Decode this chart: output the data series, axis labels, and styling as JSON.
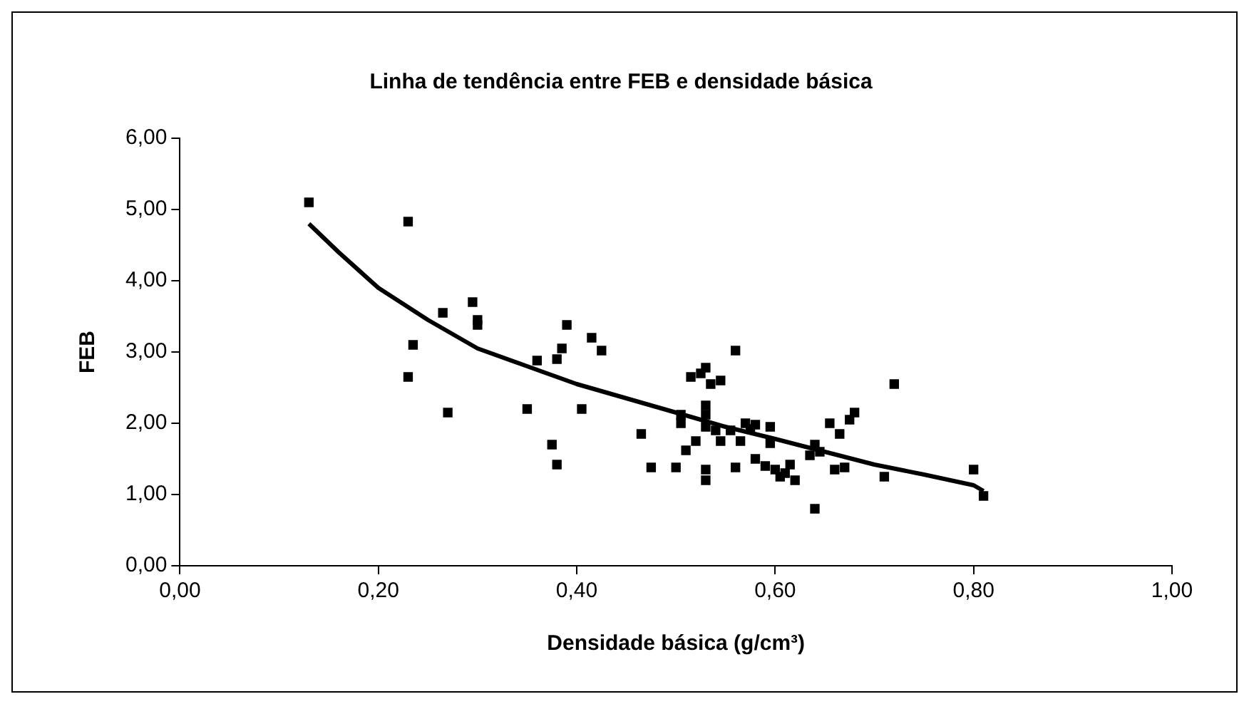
{
  "chart_data": {
    "type": "scatter",
    "title": "Linha de tendência entre FEB e densidade básica",
    "xlabel": "Densidade básica (g/cm³)",
    "ylabel": "FEB",
    "marker": "square",
    "grid": false,
    "legend": false,
    "xlim": [
      0,
      1
    ],
    "xticks": [
      {
        "value": 0,
        "label": "0,00"
      },
      {
        "value": 0.2,
        "label": "0,20"
      },
      {
        "value": 0.4,
        "label": "0,40"
      },
      {
        "value": 0.6,
        "label": "0,60"
      },
      {
        "value": 0.8,
        "label": "0,80"
      },
      {
        "value": 1,
        "label": "1,00"
      }
    ],
    "ylim": [
      0,
      6
    ],
    "yticks": [
      {
        "value": 0,
        "label": "0,00"
      },
      {
        "value": 1,
        "label": "1,00"
      },
      {
        "value": 2,
        "label": "2,00"
      },
      {
        "value": 3,
        "label": "3,00"
      },
      {
        "value": 4,
        "label": "4,00"
      },
      {
        "value": 5,
        "label": "5,00"
      },
      {
        "value": 6,
        "label": "6,00"
      }
    ],
    "series": [
      {
        "color": "#000000",
        "x": [
          0.13,
          0.23,
          0.23,
          0.235,
          0.265,
          0.27,
          0.295,
          0.3,
          0.3,
          0.35,
          0.36,
          0.375,
          0.38,
          0.38,
          0.385,
          0.39,
          0.405,
          0.415,
          0.425,
          0.465,
          0.475,
          0.5,
          0.505,
          0.505,
          0.51,
          0.515,
          0.52,
          0.525,
          0.53,
          0.53,
          0.53,
          0.53,
          0.53,
          0.53,
          0.535,
          0.54,
          0.545,
          0.545,
          0.555,
          0.56,
          0.56,
          0.565,
          0.57,
          0.575,
          0.58,
          0.58,
          0.59,
          0.595,
          0.595,
          0.6,
          0.605,
          0.61,
          0.615,
          0.62,
          0.635,
          0.64,
          0.64,
          0.645,
          0.655,
          0.66,
          0.665,
          0.67,
          0.675,
          0.68,
          0.71,
          0.72,
          0.8,
          0.81
        ],
        "values": [
          5.1,
          4.83,
          2.65,
          3.1,
          3.55,
          2.15,
          3.7,
          3.45,
          3.38,
          2.2,
          2.88,
          1.7,
          1.42,
          2.9,
          3.05,
          3.38,
          2.2,
          3.2,
          3.02,
          1.85,
          1.38,
          1.38,
          2.0,
          2.12,
          1.62,
          2.65,
          1.75,
          2.7,
          2.78,
          2.25,
          2.12,
          1.95,
          1.35,
          1.2,
          2.55,
          1.9,
          2.6,
          1.75,
          1.9,
          3.02,
          1.38,
          1.75,
          2.0,
          1.92,
          1.98,
          1.5,
          1.4,
          1.95,
          1.72,
          1.35,
          1.25,
          1.3,
          1.42,
          1.2,
          1.55,
          1.7,
          0.8,
          1.6,
          2.0,
          1.35,
          1.85,
          1.38,
          2.05,
          2.15,
          1.25,
          2.55,
          1.35,
          0.98
        ]
      },
      {
        "type": "line",
        "marker": "none",
        "color": "#000000",
        "x": [
          0.13,
          0.16,
          0.2,
          0.25,
          0.3,
          0.35,
          0.4,
          0.45,
          0.5,
          0.55,
          0.6,
          0.65,
          0.7,
          0.75,
          0.8,
          0.81
        ],
        "values": [
          4.8,
          4.4,
          3.9,
          3.45,
          3.05,
          2.8,
          2.55,
          2.35,
          2.15,
          1.95,
          1.78,
          1.6,
          1.42,
          1.28,
          1.13,
          1.05
        ]
      }
    ]
  }
}
